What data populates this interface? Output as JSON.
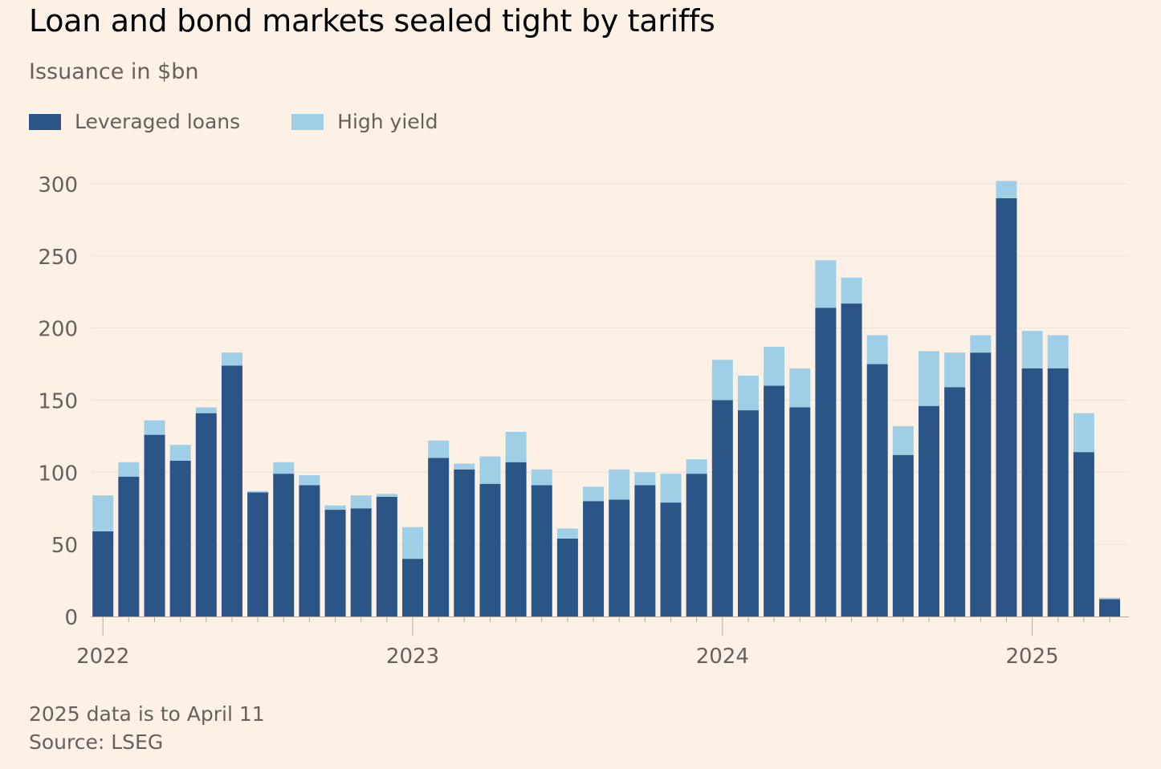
{
  "colors": {
    "leveraged_loans": "#2c5587",
    "high_yield": "#9fcfe6",
    "gridline": "#efe2d5",
    "axis": "#b5aca4",
    "background": "#fdf1e6"
  },
  "chart_data": {
    "type": "bar",
    "stacked": true,
    "title": "Loan and bond markets sealed tight by tariffs",
    "subtitle": "Issuance in $bn",
    "xlabel": "",
    "ylabel": "",
    "ylim": [
      0,
      300
    ],
    "yticks": [
      0,
      50,
      100,
      150,
      200,
      250,
      300
    ],
    "grid": true,
    "legend_position": "top-left",
    "x_tick_labels": [
      {
        "label": "2022",
        "category": "2022-01"
      },
      {
        "label": "2023",
        "category": "2023-01"
      },
      {
        "label": "2024",
        "category": "2024-01"
      },
      {
        "label": "2025",
        "category": "2025-01"
      }
    ],
    "categories": [
      "2022-01",
      "2022-02",
      "2022-03",
      "2022-04",
      "2022-05",
      "2022-06",
      "2022-07",
      "2022-08",
      "2022-09",
      "2022-10",
      "2022-11",
      "2022-12",
      "2023-01",
      "2023-02",
      "2023-03",
      "2023-04",
      "2023-05",
      "2023-06",
      "2023-07",
      "2023-08",
      "2023-09",
      "2023-10",
      "2023-11",
      "2023-12",
      "2024-01",
      "2024-02",
      "2024-03",
      "2024-04",
      "2024-05",
      "2024-06",
      "2024-07",
      "2024-08",
      "2024-09",
      "2024-10",
      "2024-11",
      "2024-12",
      "2025-01",
      "2025-02",
      "2025-03",
      "2025-04"
    ],
    "series": [
      {
        "name": "Leveraged loans",
        "color": "#2c5587",
        "values": [
          59,
          97,
          126,
          108,
          141,
          174,
          86,
          99,
          91,
          74,
          75,
          83,
          40,
          110,
          102,
          92,
          107,
          91,
          54,
          80,
          81,
          91,
          79,
          99,
          150,
          143,
          160,
          145,
          214,
          217,
          175,
          112,
          146,
          159,
          183,
          290,
          172,
          172,
          114,
          12
        ]
      },
      {
        "name": "High yield",
        "color": "#9fcfe6",
        "values": [
          25,
          10,
          10,
          11,
          4,
          9,
          1,
          8,
          7,
          3,
          9,
          2,
          22,
          12,
          4,
          19,
          21,
          11,
          7,
          10,
          21,
          9,
          20,
          10,
          28,
          24,
          27,
          27,
          33,
          18,
          20,
          20,
          38,
          24,
          12,
          12,
          26,
          23,
          27,
          1
        ]
      }
    ]
  },
  "legend": {
    "leveraged_loans_label": "Leveraged loans",
    "high_yield_label": "High yield"
  },
  "footer": {
    "note": "2025 data is to April 11",
    "source": "Source: LSEG"
  }
}
